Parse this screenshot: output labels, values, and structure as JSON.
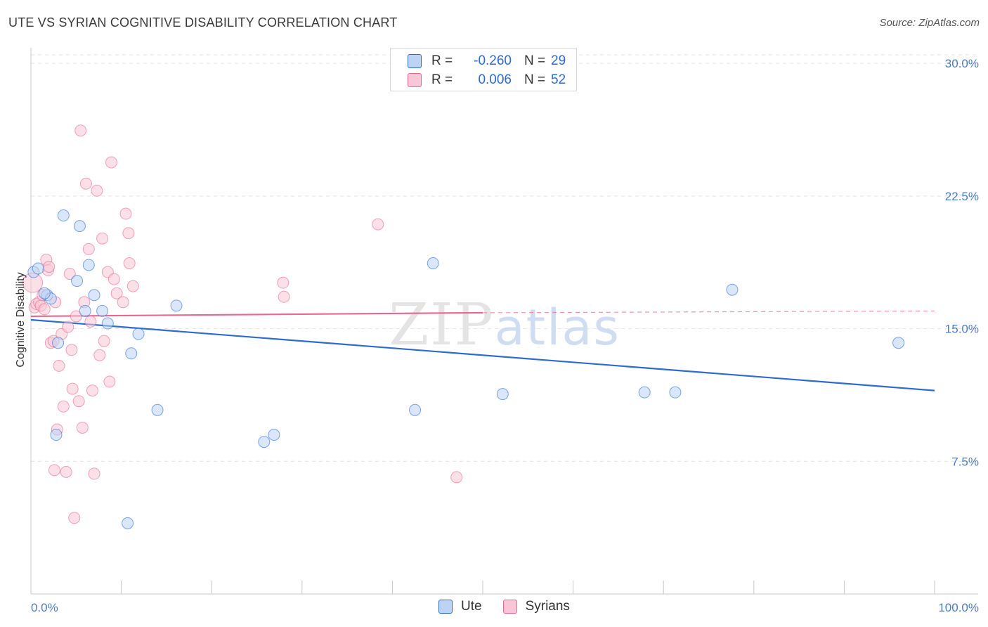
{
  "title": "UTE VS SYRIAN COGNITIVE DISABILITY CORRELATION CHART",
  "source": "Source: ZipAtlas.com",
  "colors": {
    "ute": "#2d6bd1",
    "ute_fill": "#bcd3f5",
    "syrians": "#e8678f",
    "syrians_fill": "#f8c6d6",
    "tick_text": "#4a7cc9"
  },
  "legend": {
    "ute": {
      "r_label": "R =",
      "r_value": "-0.260",
      "n_label": "N =",
      "n_value": "29"
    },
    "syrians": {
      "r_label": "R =",
      "r_value": "0.006",
      "n_label": "N =",
      "n_value": "52"
    }
  },
  "bottom_legend": {
    "ute": "Ute",
    "syrians": "Syrians"
  },
  "chart_data": {
    "type": "scatter",
    "title": "UTE VS SYRIAN COGNITIVE DISABILITY CORRELATION CHART",
    "xlabel": "",
    "ylabel": "Cognitive Disability",
    "xlim": [
      0,
      100
    ],
    "ylim": [
      0,
      30.8
    ],
    "x_tick_labels": [
      "0.0%",
      "100.0%"
    ],
    "y_ticks": [
      7.5,
      15.0,
      22.5,
      30.0
    ],
    "y_tick_labels": [
      "7.5%",
      "15.0%",
      "22.5%",
      "30.0%"
    ],
    "watermark": "ZIPatlas",
    "series": [
      {
        "name": "Ute",
        "r": -0.26,
        "n": 29,
        "trend": {
          "x": [
            0,
            100
          ],
          "y": [
            15.5,
            11.5
          ]
        },
        "points": [
          [
            0.3,
            18.2
          ],
          [
            0.8,
            18.4
          ],
          [
            1.8,
            16.9
          ],
          [
            2.2,
            16.7
          ],
          [
            3.0,
            14.2
          ],
          [
            2.8,
            9.0
          ],
          [
            3.6,
            21.4
          ],
          [
            5.1,
            17.7
          ],
          [
            5.4,
            20.8
          ],
          [
            6.0,
            16.0
          ],
          [
            6.4,
            18.6
          ],
          [
            7.0,
            16.9
          ],
          [
            7.9,
            16.0
          ],
          [
            8.5,
            15.3
          ],
          [
            10.7,
            4.0
          ],
          [
            11.1,
            13.6
          ],
          [
            11.9,
            14.7
          ],
          [
            14.0,
            10.4
          ],
          [
            16.1,
            16.3
          ],
          [
            25.8,
            8.6
          ],
          [
            26.9,
            9.0
          ],
          [
            42.5,
            10.4
          ],
          [
            44.5,
            18.7
          ],
          [
            52.2,
            11.3
          ],
          [
            67.9,
            11.4
          ],
          [
            71.3,
            11.4
          ],
          [
            77.6,
            17.2
          ],
          [
            96.0,
            14.2
          ],
          [
            1.5,
            17.0
          ]
        ]
      },
      {
        "name": "Syrians",
        "r": 0.006,
        "n": 52,
        "trend": {
          "x": [
            0,
            50
          ],
          "y": [
            15.7,
            15.9
          ]
        },
        "trend_dashed": {
          "x": [
            50,
            100
          ],
          "y": [
            15.9,
            16.0
          ]
        },
        "points": [
          [
            0.2,
            17.6
          ],
          [
            0.4,
            16.2
          ],
          [
            0.6,
            16.4
          ],
          [
            0.9,
            16.5
          ],
          [
            1.1,
            16.3
          ],
          [
            1.3,
            16.9
          ],
          [
            1.5,
            16.1
          ],
          [
            1.7,
            18.9
          ],
          [
            1.9,
            18.3
          ],
          [
            2.2,
            14.2
          ],
          [
            2.5,
            14.3
          ],
          [
            2.7,
            16.5
          ],
          [
            2.6,
            7.0
          ],
          [
            2.9,
            9.3
          ],
          [
            3.1,
            12.9
          ],
          [
            3.4,
            14.7
          ],
          [
            3.6,
            10.6
          ],
          [
            3.9,
            6.9
          ],
          [
            4.1,
            15.1
          ],
          [
            4.3,
            18.1
          ],
          [
            4.5,
            13.8
          ],
          [
            4.6,
            11.6
          ],
          [
            4.8,
            4.3
          ],
          [
            5.0,
            15.7
          ],
          [
            5.3,
            10.9
          ],
          [
            5.5,
            26.2
          ],
          [
            5.7,
            9.4
          ],
          [
            5.9,
            16.5
          ],
          [
            6.1,
            23.2
          ],
          [
            6.4,
            19.5
          ],
          [
            6.6,
            15.4
          ],
          [
            6.8,
            11.5
          ],
          [
            7.0,
            6.8
          ],
          [
            7.3,
            22.8
          ],
          [
            7.6,
            13.5
          ],
          [
            7.9,
            20.1
          ],
          [
            8.1,
            14.3
          ],
          [
            8.5,
            18.2
          ],
          [
            8.7,
            12.0
          ],
          [
            8.9,
            24.4
          ],
          [
            9.2,
            17.8
          ],
          [
            9.5,
            17.0
          ],
          [
            10.2,
            16.5
          ],
          [
            10.5,
            21.5
          ],
          [
            10.8,
            20.4
          ],
          [
            10.9,
            18.7
          ],
          [
            11.3,
            17.4
          ],
          [
            27.9,
            17.6
          ],
          [
            28.0,
            16.8
          ],
          [
            38.4,
            20.9
          ],
          [
            47.1,
            6.6
          ],
          [
            2.0,
            18.5
          ]
        ]
      }
    ]
  }
}
